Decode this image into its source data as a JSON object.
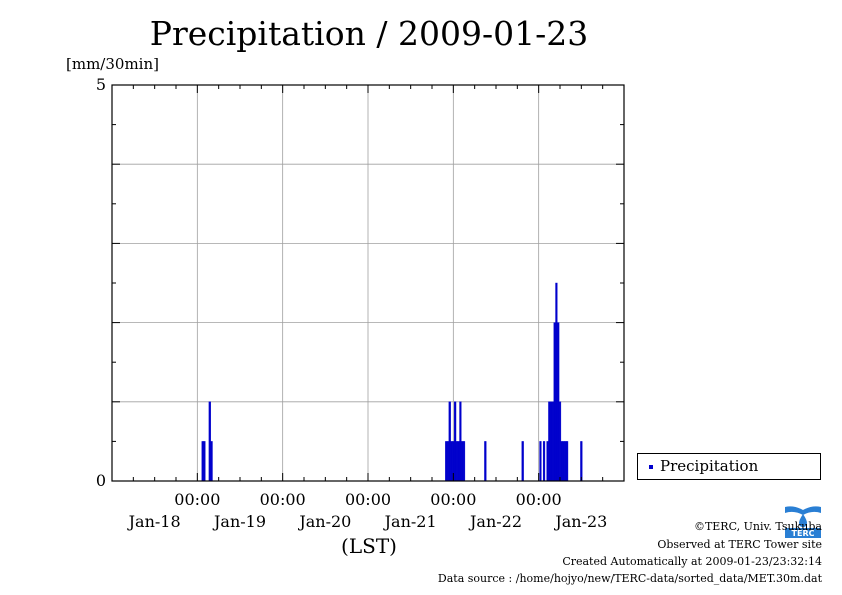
{
  "title": "Precipitation / 2009-01-23",
  "unit_label": "[mm/30min]",
  "xlabel": "(LST)",
  "legend": {
    "label": "Precipitation"
  },
  "footer": {
    "copyright": "©TERC, Univ. Tsukuba",
    "observed": "Observed at TERC Tower site",
    "created": "Created Automatically at 2009-01-23/23:32:14",
    "source": "Data source : /home/hojyo/new/TERC-data/sorted_data/MET.30m.dat"
  },
  "logo": {
    "text": "TERC"
  },
  "colors": {
    "series": "#0000cc",
    "grid": "#a0a0a0",
    "axis": "#000000"
  },
  "x_axis": {
    "time_labels": [
      "00:00",
      "00:00",
      "00:00",
      "00:00",
      "00:00"
    ],
    "date_labels": [
      "Jan-18",
      "Jan-19",
      "Jan-20",
      "Jan-21",
      "Jan-22",
      "Jan-23"
    ]
  },
  "y_axis": {
    "tick_labels": [
      "0",
      "5"
    ]
  },
  "chart_data": {
    "type": "bar",
    "title": "Precipitation / 2009-01-23",
    "ylabel": "[mm/30min]",
    "xlabel": "(LST)",
    "ylim": [
      0,
      5
    ],
    "x_unit": "days since 2009-01-18 00:00 LST",
    "xlim": [
      0,
      6
    ],
    "grid": true,
    "legend_position": "right",
    "series": [
      {
        "name": "Precipitation",
        "points": [
          {
            "x": 1.063,
            "y": 0.5
          },
          {
            "x": 1.083,
            "y": 0.5
          },
          {
            "x": 1.146,
            "y": 1.0
          },
          {
            "x": 1.167,
            "y": 0.5
          },
          {
            "x": 3.917,
            "y": 0.5
          },
          {
            "x": 3.938,
            "y": 0.5
          },
          {
            "x": 3.958,
            "y": 1.0
          },
          {
            "x": 3.979,
            "y": 0.5
          },
          {
            "x": 4.0,
            "y": 0.5
          },
          {
            "x": 4.021,
            "y": 1.0
          },
          {
            "x": 4.042,
            "y": 0.5
          },
          {
            "x": 4.063,
            "y": 0.5
          },
          {
            "x": 4.083,
            "y": 1.0
          },
          {
            "x": 4.104,
            "y": 0.5
          },
          {
            "x": 4.125,
            "y": 0.5
          },
          {
            "x": 4.375,
            "y": 0.5
          },
          {
            "x": 4.813,
            "y": 0.5
          },
          {
            "x": 5.021,
            "y": 0.5
          },
          {
            "x": 5.063,
            "y": 0.5
          },
          {
            "x": 5.104,
            "y": 0.5
          },
          {
            "x": 5.125,
            "y": 1.0
          },
          {
            "x": 5.146,
            "y": 1.0
          },
          {
            "x": 5.167,
            "y": 1.0
          },
          {
            "x": 5.188,
            "y": 2.0
          },
          {
            "x": 5.208,
            "y": 2.5
          },
          {
            "x": 5.229,
            "y": 2.0
          },
          {
            "x": 5.25,
            "y": 1.0
          },
          {
            "x": 5.271,
            "y": 0.5
          },
          {
            "x": 5.292,
            "y": 0.5
          },
          {
            "x": 5.313,
            "y": 0.5
          },
          {
            "x": 5.333,
            "y": 0.5
          },
          {
            "x": 5.5,
            "y": 0.5
          }
        ]
      }
    ]
  }
}
